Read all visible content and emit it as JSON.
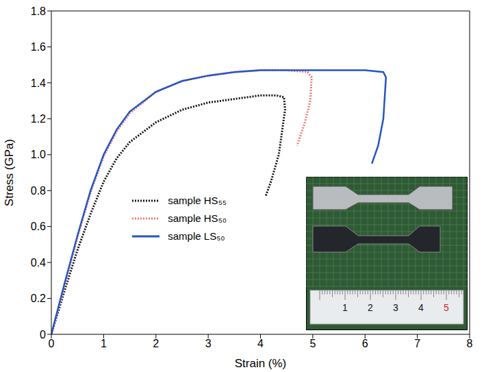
{
  "chart_data": {
    "type": "line",
    "xlabel": "Strain (%)",
    "ylabel": "Stress (GPa)",
    "xlim": [
      0,
      8
    ],
    "xticks": [
      0,
      1,
      2,
      3,
      4,
      5,
      6,
      7,
      8
    ],
    "ylim": [
      0,
      1.8
    ],
    "yticks": [
      0,
      0.2,
      0.4,
      0.6,
      0.8,
      {
        "value": 1,
        "label": "1.0"
      },
      1.2,
      1.4,
      1.6,
      1.8
    ],
    "grid": false,
    "legend": "lower left",
    "series": [
      {
        "name": "sample HS₅₅",
        "color": "#111111",
        "line_style": "dotted",
        "x": [
          0,
          0.25,
          0.5,
          0.75,
          1,
          1.25,
          1.5,
          2,
          2.5,
          3,
          3.5,
          4,
          4.3,
          4.45,
          4.47,
          4.35,
          4.2,
          4.1
        ],
        "values": [
          0,
          0.24,
          0.47,
          0.67,
          0.85,
          0.98,
          1.07,
          1.18,
          1.25,
          1.29,
          1.31,
          1.33,
          1.33,
          1.32,
          1.25,
          1.0,
          0.85,
          0.77
        ]
      },
      {
        "name": "sample HS₅₀",
        "color": "#f07a72",
        "line_style": "dotted",
        "x": [
          0,
          0.25,
          0.5,
          0.75,
          1,
          1.25,
          1.5,
          2,
          2.5,
          3,
          3.5,
          4,
          4.5,
          4.9,
          4.98,
          4.95,
          4.85,
          4.7
        ],
        "values": [
          0,
          0.27,
          0.54,
          0.79,
          0.99,
          1.13,
          1.23,
          1.35,
          1.41,
          1.44,
          1.46,
          1.47,
          1.47,
          1.46,
          1.43,
          1.3,
          1.18,
          1.05
        ]
      },
      {
        "name": "sample LS₅₀",
        "color": "#2255c4",
        "line_style": "solid",
        "x": [
          0,
          0.25,
          0.5,
          0.75,
          1,
          1.25,
          1.5,
          2,
          2.5,
          3,
          3.5,
          4,
          5,
          6,
          6.35,
          6.4,
          6.35,
          6.25,
          6.13
        ],
        "values": [
          0,
          0.28,
          0.55,
          0.8,
          1.0,
          1.14,
          1.24,
          1.35,
          1.41,
          1.44,
          1.46,
          1.47,
          1.47,
          1.47,
          1.46,
          1.43,
          1.2,
          1.05,
          0.95
        ]
      }
    ],
    "inset": {
      "ruler_labels": [
        1,
        2,
        3,
        4,
        5
      ]
    }
  }
}
